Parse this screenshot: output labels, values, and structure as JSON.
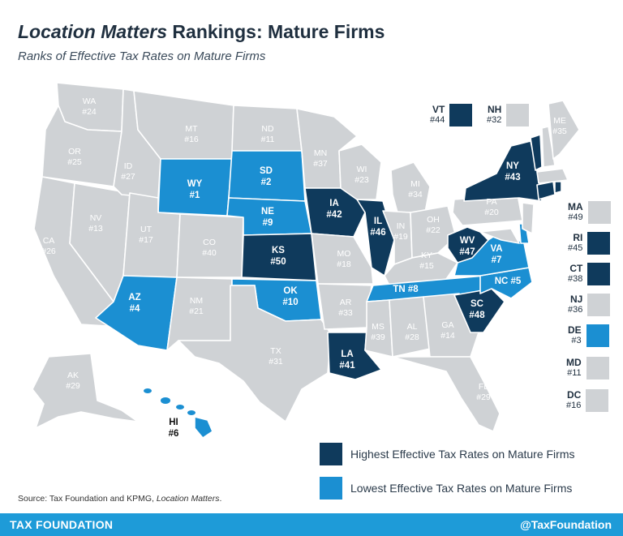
{
  "title_italic": "Location Matters",
  "title_rest": " Rankings: Mature Firms",
  "subtitle": "Ranks of Effective Tax Rates on Mature Firms",
  "colors": {
    "high": "#0f3a5c",
    "low": "#1b8fd2",
    "neutral": "#cfd2d5",
    "footer": "#1e9bd8"
  },
  "states": {
    "WA": "#24",
    "OR": "#25",
    "CA": "#26",
    "NV": "#13",
    "ID": "#27",
    "MT": "#16",
    "WY": "#1",
    "UT": "#17",
    "AZ": "#4",
    "CO": "#40",
    "NM": "#21",
    "ND": "#11",
    "SD": "#2",
    "NE": "#9",
    "KS": "#50",
    "OK": "#10",
    "TX": "#31",
    "MN": "#37",
    "IA": "#42",
    "MO": "#18",
    "AR": "#33",
    "LA": "#41",
    "WI": "#23",
    "IL": "#46",
    "MI": "#34",
    "IN": "#19",
    "OH": "#22",
    "KY": "#15",
    "TN": "#8",
    "MS": "#39",
    "AL": "#28",
    "GA": "#14",
    "FL": "#29",
    "SC": "#48",
    "NC": "#5",
    "VA": "#7",
    "WV": "#47",
    "PA": "#20",
    "NY": "#43",
    "ME": "#35",
    "AK": "#29",
    "HI": "#6"
  },
  "side_states": {
    "VT": "#44",
    "NH": "#32",
    "MA": "#49",
    "RI": "#45",
    "CT": "#38",
    "NJ": "#36",
    "DE": "#3",
    "MD": "#11",
    "DC": "#16"
  },
  "legend": {
    "high": "Highest Effective Tax Rates on Mature Firms",
    "low": "Lowest Effective Tax Rates on Mature Firms"
  },
  "source_prefix": "Source: Tax Foundation and KPMG, ",
  "source_italic": "Location Matters",
  "source_suffix": ".",
  "footer_left": "TAX FOUNDATION",
  "footer_right": "@TaxFoundation"
}
